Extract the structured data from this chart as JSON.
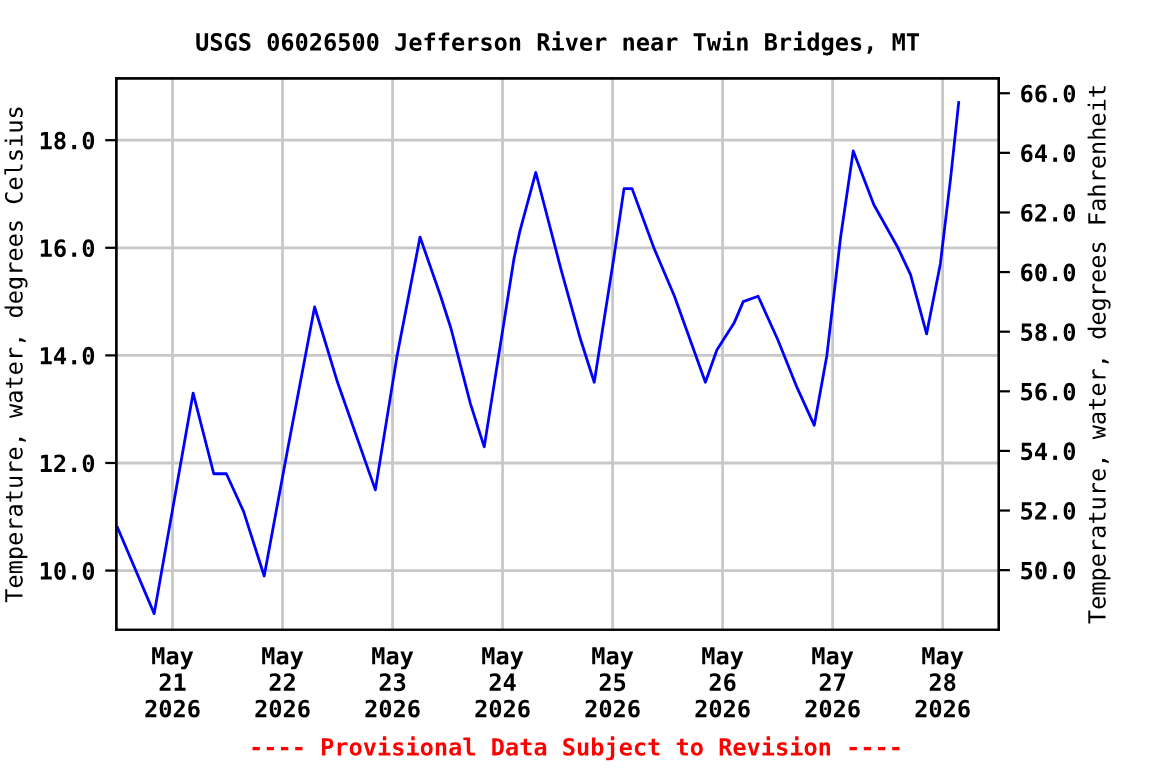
{
  "chart_data": {
    "type": "line",
    "title": "USGS 06026500 Jefferson River near Twin Bridges, MT",
    "ylabel": "Temperature, water, degrees Celsius",
    "y2label": "Temperature, water, degrees Fahrenheit",
    "annotations": [
      "---- Provisional Data Subject to Revision ----"
    ],
    "x": [
      "2026-05-20T12:00",
      "2026-05-20T20:00",
      "2026-05-21T04:30",
      "2026-05-21T09:00",
      "2026-05-21T11:45",
      "2026-05-21T15:30",
      "2026-05-21T20:00",
      "2026-05-22T01:00",
      "2026-05-22T07:00",
      "2026-05-22T12:00",
      "2026-05-22T20:15",
      "2026-05-23T01:00",
      "2026-05-23T06:00",
      "2026-05-23T10:30",
      "2026-05-23T12:45",
      "2026-05-23T17:00",
      "2026-05-23T20:00",
      "2026-05-24T02:30",
      "2026-05-24T03:45",
      "2026-05-24T07:15",
      "2026-05-24T12:45",
      "2026-05-24T17:00",
      "2026-05-24T20:00",
      "2026-05-25T00:15",
      "2026-05-25T02:30",
      "2026-05-25T04:15",
      "2026-05-25T09:00",
      "2026-05-25T13:30",
      "2026-05-25T20:15",
      "2026-05-25T22:45",
      "2026-05-26T02:30",
      "2026-05-26T04:30",
      "2026-05-26T07:45",
      "2026-05-26T12:00",
      "2026-05-26T16:15",
      "2026-05-26T20:00",
      "2026-05-26T22:45",
      "2026-05-27T01:45",
      "2026-05-27T04:30",
      "2026-05-27T09:00",
      "2026-05-27T14:15",
      "2026-05-27T17:00",
      "2026-05-27T20:30",
      "2026-05-27T23:30",
      "2026-05-28T01:45",
      "2026-05-28T03:30"
    ],
    "series": [
      {
        "color": "#0000ff",
        "values": [
          10.8,
          9.2,
          13.3,
          11.8,
          11.8,
          11.1,
          9.9,
          12.2,
          14.9,
          13.5,
          11.5,
          14.0,
          16.2,
          15.1,
          14.5,
          13.1,
          12.3,
          15.8,
          16.3,
          17.4,
          15.6,
          14.3,
          13.5,
          15.8,
          17.1,
          17.1,
          16.0,
          15.1,
          13.5,
          14.1,
          14.6,
          15.0,
          15.1,
          14.3,
          13.4,
          12.7,
          14.0,
          16.2,
          17.8,
          16.8,
          16.0,
          15.5,
          14.4,
          15.7,
          17.3,
          18.7
        ]
      }
    ],
    "xlim": [
      "2026-05-20T11:45",
      "2026-05-28T12:15"
    ],
    "xticks": [
      {
        "value": "2026-05-21",
        "label": "May\n21\n2026"
      },
      {
        "value": "2026-05-22",
        "label": "May\n22\n2026"
      },
      {
        "value": "2026-05-23",
        "label": "May\n23\n2026"
      },
      {
        "value": "2026-05-24",
        "label": "May\n24\n2026"
      },
      {
        "value": "2026-05-25",
        "label": "May\n25\n2026"
      },
      {
        "value": "2026-05-26",
        "label": "May\n26\n2026"
      },
      {
        "value": "2026-05-27",
        "label": "May\n27\n2026"
      },
      {
        "value": "2026-05-28",
        "label": "May\n28\n2026"
      }
    ],
    "ylim": [
      8.9,
      19.15
    ],
    "yticks": [
      {
        "value": 10,
        "label": "10.0"
      },
      {
        "value": 12,
        "label": "12.0"
      },
      {
        "value": 14,
        "label": "14.0"
      },
      {
        "value": 16,
        "label": "16.0"
      },
      {
        "value": 18,
        "label": "18.0"
      }
    ],
    "y2lim": [
      48.0,
      66.5
    ],
    "y2ticks": [
      {
        "value": 50,
        "label": "50.0"
      },
      {
        "value": 52,
        "label": "52.0"
      },
      {
        "value": 54,
        "label": "54.0"
      },
      {
        "value": 56,
        "label": "56.0"
      },
      {
        "value": 58,
        "label": "58.0"
      },
      {
        "value": 60,
        "label": "60.0"
      },
      {
        "value": 62,
        "label": "62.0"
      },
      {
        "value": 64,
        "label": "64.0"
      },
      {
        "value": 66,
        "label": "66.0"
      }
    ],
    "grid": true,
    "marker": "none",
    "line_style": "solid"
  }
}
